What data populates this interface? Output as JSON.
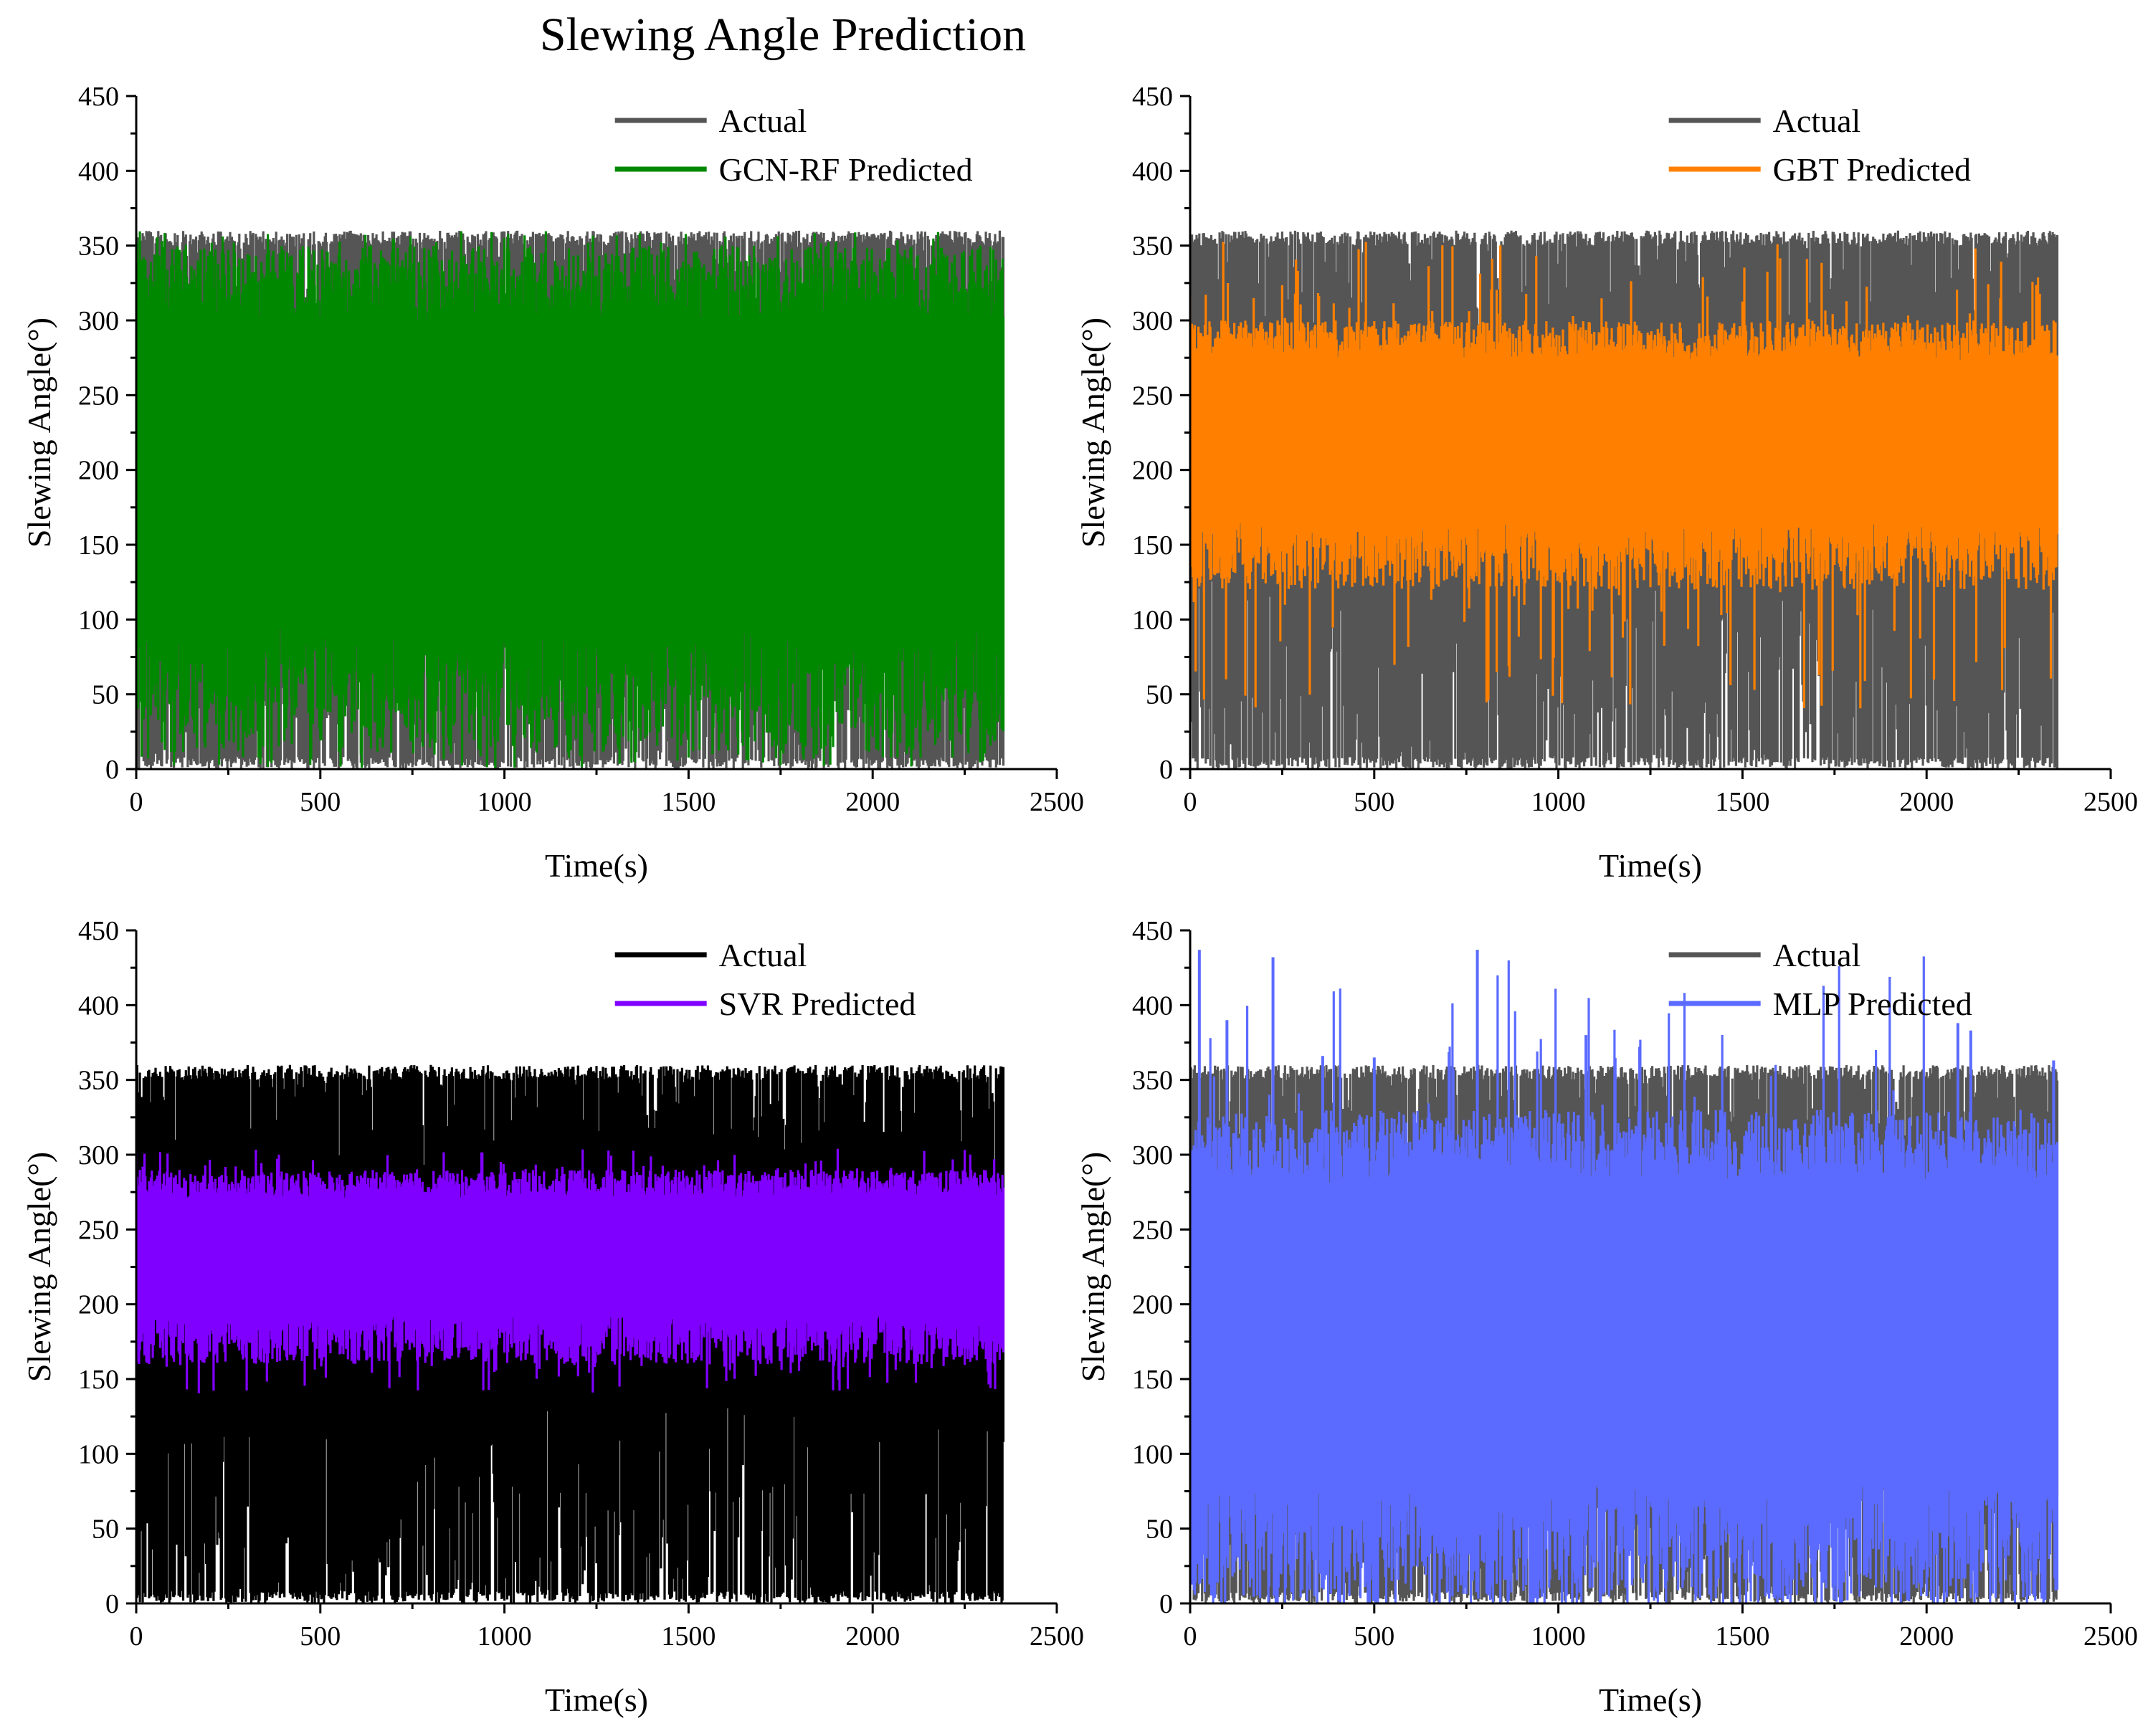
{
  "figure_title": "Slewing Angle Prediction",
  "chart_data": [
    {
      "type": "line",
      "title": "",
      "xlabel": "Time(s)",
      "ylabel": "Slewing Angle(°)",
      "xlim": [
        0,
        2500
      ],
      "ylim": [
        0,
        450
      ],
      "xticks": [
        "0",
        "500",
        "1000",
        "1500",
        "2000",
        "2500"
      ],
      "yticks": [
        "0",
        "50",
        "100",
        "150",
        "200",
        "250",
        "300",
        "350",
        "400",
        "450"
      ],
      "legend_position": "top-right",
      "series": [
        {
          "name": "Actual",
          "color": "#555555",
          "x_range": [
            0,
            2355
          ],
          "value_min": 0,
          "value_max": 360,
          "typical_low": 0,
          "typical_high": 358
        },
        {
          "name": "GCN-RF Predicted",
          "color": "#008800",
          "x_range": [
            0,
            2355
          ],
          "value_min": 0,
          "value_max": 360,
          "typical_low": 10,
          "typical_high": 350
        }
      ]
    },
    {
      "type": "line",
      "title": "",
      "xlabel": "Time(s)",
      "ylabel": "Slewing Angle(°)",
      "xlim": [
        0,
        2500
      ],
      "ylim": [
        0,
        450
      ],
      "xticks": [
        "0",
        "500",
        "1000",
        "1500",
        "2000",
        "2500"
      ],
      "yticks": [
        "0",
        "50",
        "100",
        "150",
        "200",
        "250",
        "300",
        "350",
        "400",
        "450"
      ],
      "legend_position": "top-right",
      "series": [
        {
          "name": "Actual",
          "color": "#555555",
          "x_range": [
            0,
            2355
          ],
          "value_min": 0,
          "value_max": 360,
          "typical_low": 0,
          "typical_high": 358
        },
        {
          "name": "GBT Predicted",
          "color": "#FF8000",
          "x_range": [
            0,
            2355
          ],
          "value_min": 40,
          "value_max": 355,
          "typical_low": 120,
          "typical_high": 300
        }
      ]
    },
    {
      "type": "line",
      "title": "",
      "xlabel": "Time(s)",
      "ylabel": "Slewing Angle(°)",
      "xlim": [
        0,
        2500
      ],
      "ylim": [
        0,
        450
      ],
      "xticks": [
        "0",
        "500",
        "1000",
        "1500",
        "2000",
        "2500"
      ],
      "yticks": [
        "0",
        "50",
        "100",
        "150",
        "200",
        "250",
        "300",
        "350",
        "400",
        "450"
      ],
      "legend_position": "top-right",
      "series": [
        {
          "name": "Actual",
          "color": "#000000",
          "x_range": [
            0,
            2355
          ],
          "value_min": 0,
          "value_max": 360,
          "typical_low": 0,
          "typical_high": 358
        },
        {
          "name": "SVR Predicted",
          "color": "#8000FF",
          "x_range": [
            0,
            2355
          ],
          "value_min": 140,
          "value_max": 305,
          "typical_low": 160,
          "typical_high": 290
        }
      ]
    },
    {
      "type": "line",
      "title": "",
      "xlabel": "Time(s)",
      "ylabel": "Slewing Angle(°)",
      "xlim": [
        0,
        2500
      ],
      "ylim": [
        0,
        450
      ],
      "xticks": [
        "0",
        "500",
        "1000",
        "1500",
        "2000",
        "2500"
      ],
      "yticks": [
        "0",
        "50",
        "100",
        "150",
        "200",
        "250",
        "300",
        "350",
        "400",
        "450"
      ],
      "legend_position": "top-right",
      "series": [
        {
          "name": "Actual",
          "color": "#555555",
          "x_range": [
            0,
            2355
          ],
          "value_min": 0,
          "value_max": 360,
          "typical_low": 0,
          "typical_high": 358
        },
        {
          "name": "MLP Predicted",
          "color": "#5B6BFF",
          "x_range": [
            0,
            2355
          ],
          "value_min": 0,
          "value_max": 437,
          "typical_low": 0,
          "typical_high": 330,
          "spikes": [
            {
              "x": 25,
              "y": 437
            },
            {
              "x": 100,
              "y": 390
            },
            {
              "x": 225,
              "y": 432
            },
            {
              "x": 360,
              "y": 366
            },
            {
              "x": 500,
              "y": 365
            },
            {
              "x": 780,
              "y": 437
            },
            {
              "x": 1075,
              "y": 380
            },
            {
              "x": 2085,
              "y": 388
            },
            {
              "x": 2120,
              "y": 383
            },
            {
              "x": 2345,
              "y": 363
            }
          ]
        }
      ]
    }
  ]
}
